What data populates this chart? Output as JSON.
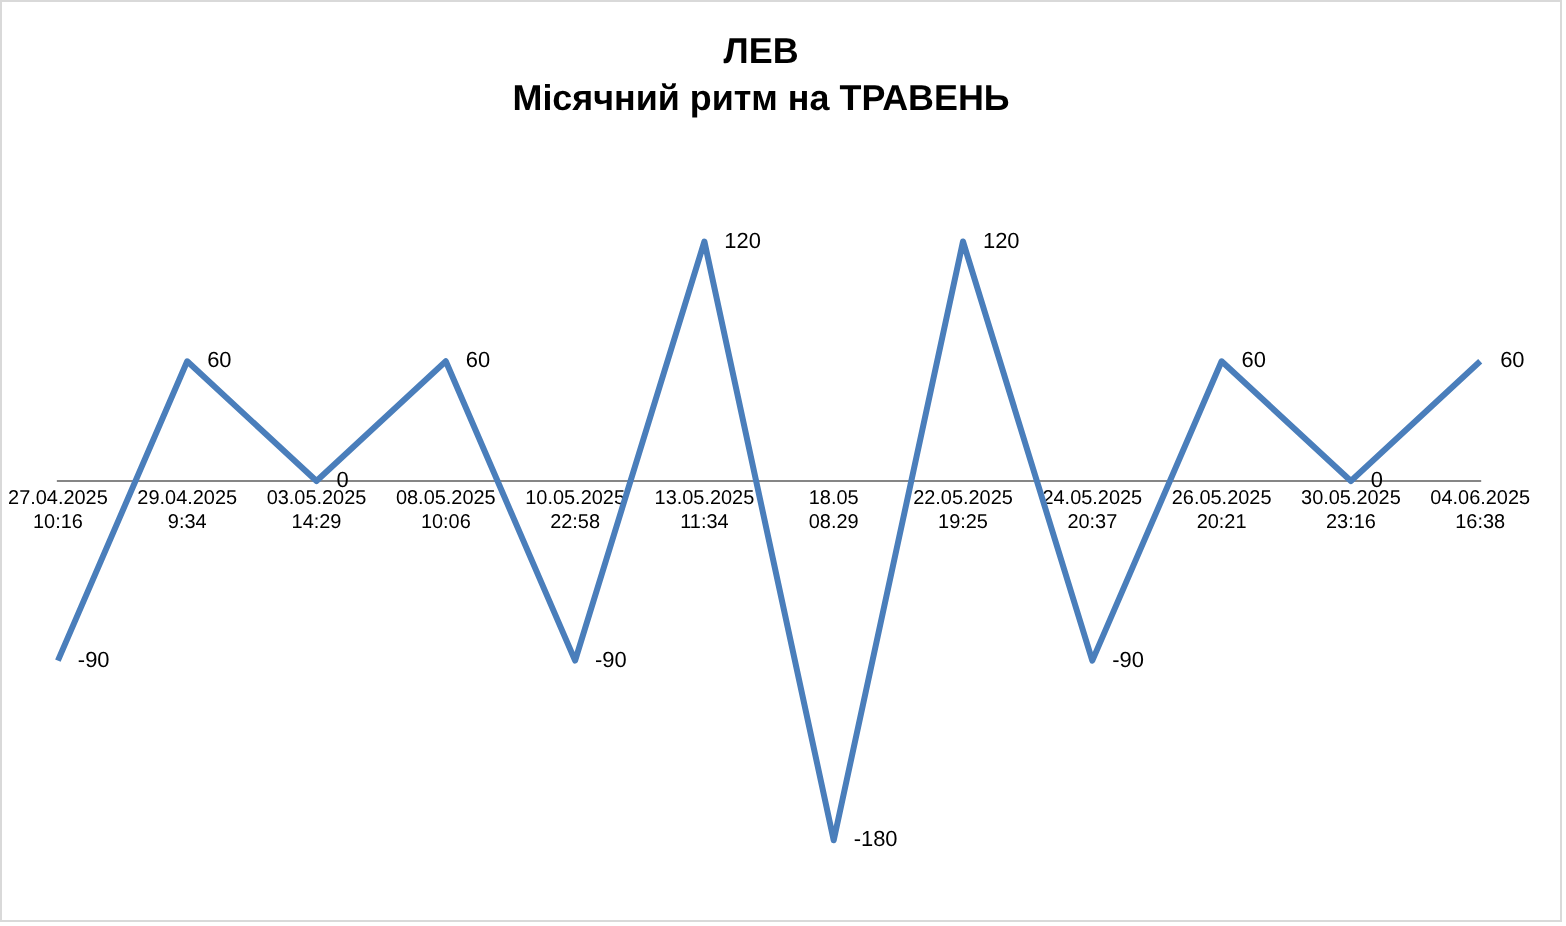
{
  "chart_data": {
    "type": "line",
    "title": "ЛЕВ",
    "subtitle": "Місячний ритм на ТРАВЕНЬ",
    "categories": [
      "27.04.2025\n10:16",
      "29.04.2025\n9:34",
      "03.05.2025\n14:29",
      "08.05.2025\n10:06",
      "10.05.2025\n22:58",
      "13.05.2025\n11:34",
      "18.05\n08.29",
      "22.05.2025\n19:25",
      "24.05.2025\n20:37",
      "26.05.2025\n20:21",
      "30.05.2025\n23:16",
      "04.06.2025\n16:38"
    ],
    "series": [
      {
        "color": "#4a7ebb",
        "values": [
          -90,
          60,
          0,
          60,
          -90,
          120,
          -180,
          120,
          -90,
          60,
          0,
          60
        ]
      }
    ],
    "data_labels": true,
    "marker": "none",
    "legend": false,
    "grid": false
  }
}
